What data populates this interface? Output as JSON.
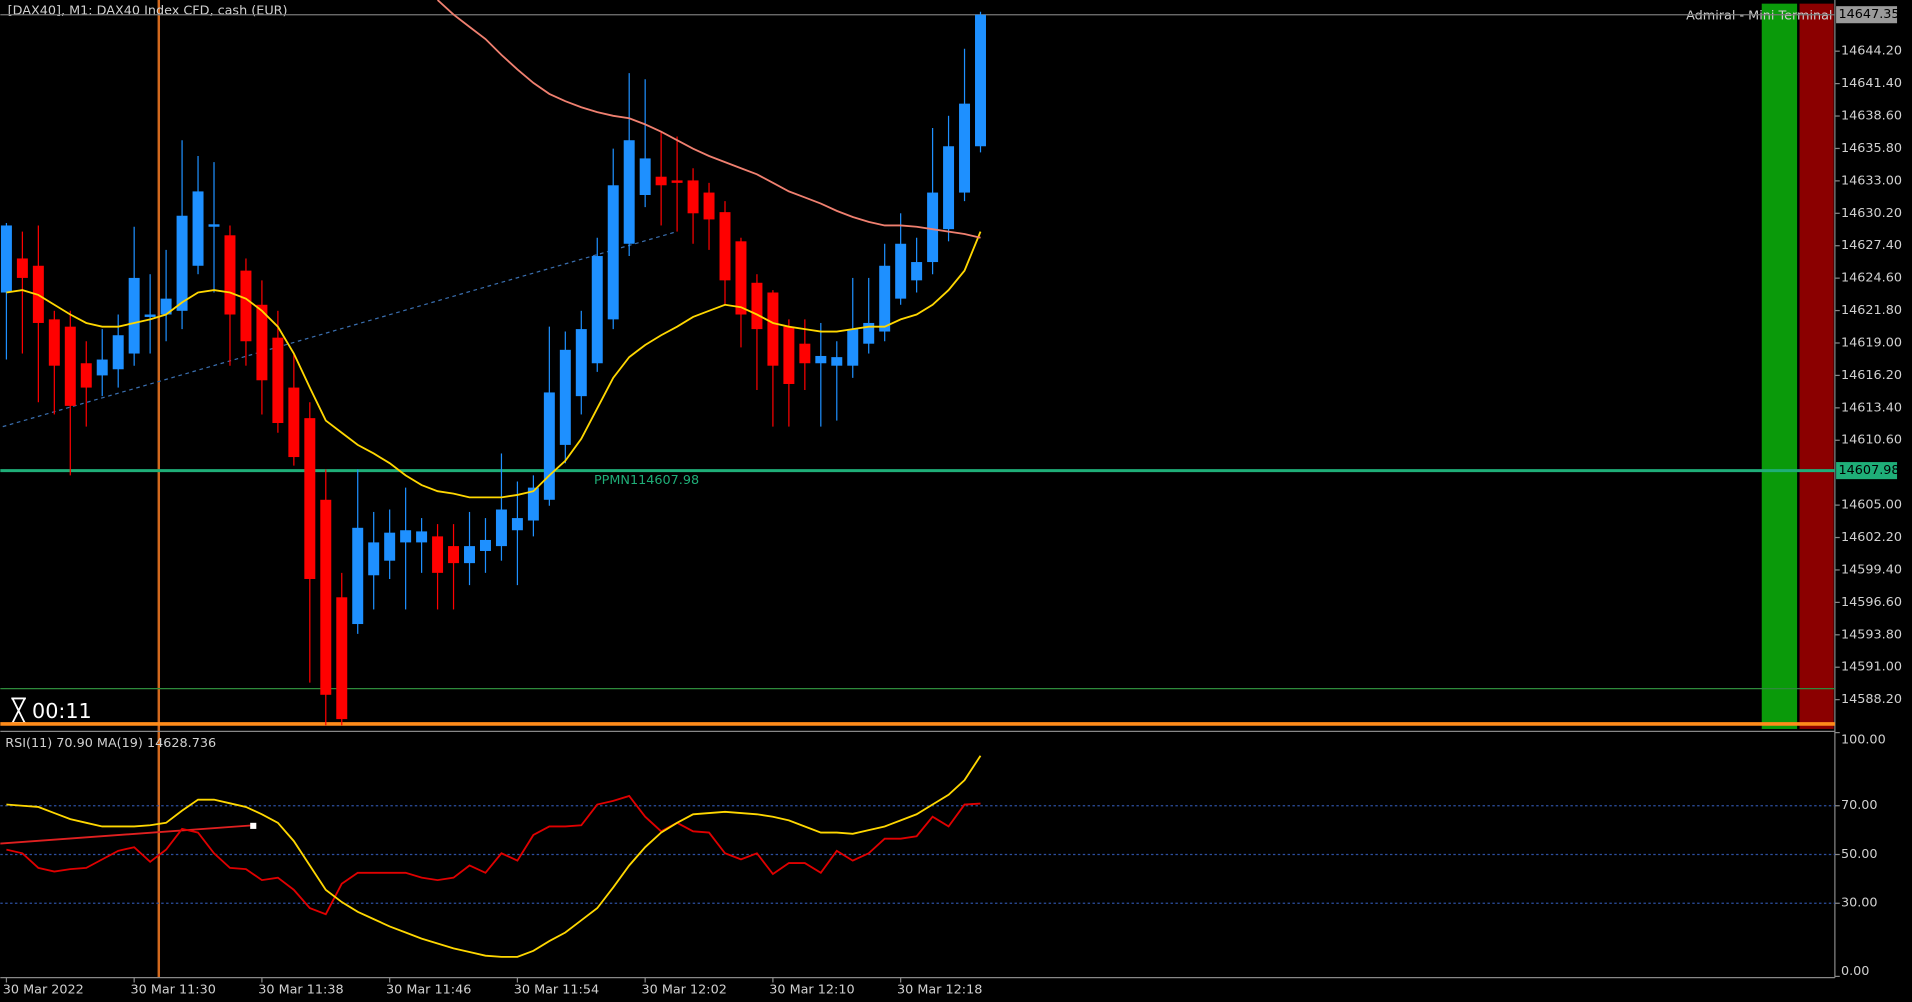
{
  "chart_data": [
    {
      "type": "candlestick",
      "title": "[DAX40], M1:  DAX40 Index CFD, cash (EUR)",
      "annotations": [
        "Admiral - Mini Terminal",
        "00:11"
      ],
      "up_color": "#1e90ff",
      "down_color": "#ff0000",
      "open": [
        14623.36,
        14626.3,
        14625.67,
        14621.04,
        14620.41,
        14617.25,
        14616.2,
        14616.73,
        14618.09,
        14621.25,
        14621.46,
        14621.78,
        14625.67,
        14629.04,
        14628.3,
        14625.25,
        14622.3,
        14619.46,
        14615.15,
        14612.51,
        14605.46,
        14597.04,
        14594.73,
        14598.94,
        14600.2,
        14601.78,
        14601.78,
        14602.3,
        14601.46,
        14599.99,
        14601.04,
        14601.46,
        14602.83,
        14603.67,
        14605.46,
        14610.2,
        14614.41,
        14617.25,
        14621.04,
        14627.57,
        14631.78,
        14633.36,
        14633.04,
        14633.04,
        14631.99,
        14630.3,
        14627.78,
        14624.2,
        14623.36,
        14620.41,
        14618.94,
        14617.25,
        14617.04,
        14617.04,
        14618.94,
        14619.99,
        14622.83,
        14624.41,
        14625.99,
        14628.83,
        14631.99,
        14635.99
      ],
      "high": [
        14629.36,
        14628.62,
        14629.15,
        14621.78,
        14621.78,
        14619.15,
        14620.2,
        14621.46,
        14629.04,
        14624.94,
        14627.04,
        14636.51,
        14635.15,
        14634.62,
        14629.15,
        14626.3,
        14624.41,
        14621.78,
        14618.09,
        14613.88,
        14608.09,
        14599.15,
        14608.09,
        14604.41,
        14604.62,
        14606.51,
        14603.88,
        14603.36,
        14603.36,
        14604.41,
        14603.88,
        14609.46,
        14607.04,
        14607.57,
        14620.41,
        14619.99,
        14621.78,
        14628.09,
        14635.78,
        14642.3,
        14641.78,
        14637.25,
        14636.83,
        14634.09,
        14632.83,
        14631.25,
        14628.09,
        14624.94,
        14623.57,
        14621.04,
        14621.04,
        14620.73,
        14619.15,
        14624.62,
        14624.62,
        14627.57,
        14630.2,
        14628.09,
        14637.57,
        14638.62,
        14644.41,
        14647.6
      ],
      "low": [
        14617.57,
        14618.09,
        14613.88,
        14612.83,
        14607.57,
        14611.78,
        14614.41,
        14615.15,
        14617.04,
        14618.09,
        14619.15,
        14620.2,
        14624.94,
        14623.36,
        14617.04,
        14617.04,
        14612.83,
        14611.25,
        14608.41,
        14589.67,
        14585.99,
        14585.99,
        14593.88,
        14595.99,
        14598.62,
        14595.99,
        14599.15,
        14595.99,
        14595.99,
        14598.09,
        14599.15,
        14600.2,
        14598.09,
        14602.3,
        14604.94,
        14608.62,
        14612.83,
        14616.51,
        14620.2,
        14626.51,
        14630.73,
        14629.15,
        14628.62,
        14627.57,
        14627.04,
        14622.3,
        14618.62,
        14614.94,
        14611.78,
        14611.78,
        14614.94,
        14611.78,
        14612.3,
        14615.99,
        14618.09,
        14619.15,
        14622.3,
        14623.36,
        14624.94,
        14627.78,
        14631.25,
        14635.46
      ],
      "close": [
        14629.15,
        14624.62,
        14620.73,
        14617.04,
        14613.57,
        14615.15,
        14617.57,
        14619.67,
        14624.62,
        14621.46,
        14622.83,
        14629.99,
        14632.09,
        14629.25,
        14621.46,
        14619.15,
        14615.78,
        14612.09,
        14609.15,
        14598.62,
        14588.62,
        14586.52,
        14603.04,
        14601.78,
        14602.62,
        14602.83,
        14602.73,
        14599.15,
        14599.99,
        14601.46,
        14601.99,
        14604.62,
        14603.88,
        14606.51,
        14614.73,
        14618.41,
        14620.2,
        14626.51,
        14632.62,
        14636.51,
        14634.94,
        14632.62,
        14632.83,
        14630.2,
        14629.67,
        14624.41,
        14621.46,
        14620.2,
        14617.04,
        14615.46,
        14617.25,
        14617.88,
        14617.78,
        14620.2,
        14620.73,
        14625.67,
        14627.57,
        14625.99,
        14631.99,
        14635.99,
        14639.67,
        14647.35
      ],
      "series": [
        {
          "color": "#ffd700",
          "values": [
            14623.36,
            14623.57,
            14623.15,
            14622.3,
            14621.46,
            14620.73,
            14620.41,
            14620.41,
            14620.73,
            14621.04,
            14621.46,
            14622.51,
            14623.36,
            14623.57,
            14623.36,
            14622.83,
            14621.78,
            14620.41,
            14618.09,
            14615.15,
            14612.3,
            14611.25,
            14610.2,
            14609.46,
            14608.62,
            14607.57,
            14606.73,
            14606.2,
            14605.99,
            14605.67,
            14605.67,
            14605.67,
            14605.88,
            14606.2,
            14607.57,
            14608.83,
            14610.73,
            14613.36,
            14615.99,
            14617.78,
            14618.83,
            14619.67,
            14620.41,
            14621.25,
            14621.78,
            14622.3,
            14622.09,
            14621.46,
            14620.73,
            14620.41,
            14620.2,
            14619.99,
            14619.99,
            14620.2,
            14620.41,
            14620.41,
            14621.04,
            14621.46,
            14622.3,
            14623.57,
            14625.25,
            14628.62
          ]
        },
        {
          "color": "#f08070",
          "values": [
            null,
            null,
            null,
            null,
            null,
            null,
            null,
            null,
            null,
            null,
            null,
            null,
            null,
            null,
            null,
            null,
            null,
            null,
            null,
            null,
            null,
            null,
            null,
            null,
            null,
            null,
            null,
            14648.62,
            14647.36,
            14646.3,
            14645.25,
            14643.88,
            14642.62,
            14641.46,
            14640.51,
            14639.88,
            14639.36,
            14638.94,
            14638.62,
            14638.41,
            14637.88,
            14637.25,
            14636.51,
            14635.78,
            14635.15,
            14634.62,
            14634.09,
            14633.57,
            14632.83,
            14632.09,
            14631.57,
            14631.04,
            14630.41,
            14629.88,
            14629.46,
            14629.15,
            14629.15,
            14629.04,
            14628.83,
            14628.62,
            14628.41,
            14628.09
          ]
        }
      ],
      "last_price": 14647.35,
      "hlines": [
        {
          "value": 14607.98,
          "color": "#1fae78",
          "label": "PPMN114607.98"
        },
        {
          "value": 14586.1,
          "color": "#ff8c1a"
        },
        {
          "value": 14589.15,
          "color": "#2e8b3c"
        }
      ],
      "ylim": [
        14585.67,
        14648.62
      ],
      "yticks": [
        {
          "value": 14644.2,
          "label": "14644.20"
        },
        {
          "value": 14641.4,
          "label": "14641.40"
        },
        {
          "value": 14638.6,
          "label": "14638.60"
        },
        {
          "value": 14635.8,
          "label": "14635.80"
        },
        {
          "value": 14633,
          "label": "14633.00"
        },
        {
          "value": 14630.2,
          "label": "14630.20"
        },
        {
          "value": 14627.4,
          "label": "14627.40"
        },
        {
          "value": 14624.6,
          "label": "14624.60"
        },
        {
          "value": 14621.8,
          "label": "14621.80"
        },
        {
          "value": 14619,
          "label": "14619.00"
        },
        {
          "value": 14616.2,
          "label": "14616.20"
        },
        {
          "value": 14613.4,
          "label": "14613.40"
        },
        {
          "value": 14610.6,
          "label": "14610.60"
        },
        {
          "value": 14605,
          "label": "14605.00"
        },
        {
          "value": 14602.2,
          "label": "14602.20"
        },
        {
          "value": 14599.4,
          "label": "14599.40"
        },
        {
          "value": 14596.6,
          "label": "14596.60"
        },
        {
          "value": 14593.8,
          "label": "14593.80"
        },
        {
          "value": 14591,
          "label": "14591.00"
        },
        {
          "value": 14588.2,
          "label": "14588.20"
        }
      ]
    },
    {
      "type": "line",
      "title": "RSI(11) 70.90 MA(19) 14628.736",
      "categories": [
        "30 Mar 2022",
        null,
        null,
        null,
        null,
        null,
        null,
        null,
        "30 Mar 11:30",
        null,
        null,
        null,
        null,
        null,
        null,
        null,
        "30 Mar 11:38",
        null,
        null,
        null,
        null,
        null,
        null,
        null,
        "30 Mar 11:46",
        null,
        null,
        null,
        null,
        null,
        null,
        null,
        "30 Mar 11:54",
        null,
        null,
        null,
        null,
        null,
        null,
        null,
        "30 Mar 12:02",
        null,
        null,
        null,
        null,
        null,
        null,
        null,
        "30 Mar 12:10",
        null,
        null,
        null,
        null,
        null,
        null,
        null,
        "30 Mar 12:18",
        null,
        null,
        null,
        null,
        null
      ],
      "series": [
        {
          "color": "#e00000",
          "values": [
            52,
            50.5,
            44.5,
            43,
            44,
            44.5,
            48,
            51.5,
            53,
            47,
            52,
            60.5,
            59,
            50.5,
            44.5,
            44,
            39.5,
            40.5,
            35.5,
            28,
            25.5,
            38,
            42.5,
            42.5,
            42.5,
            42.5,
            40.5,
            39.5,
            40.5,
            45.5,
            42.5,
            50.5,
            47.5,
            58,
            61.5,
            61.5,
            62,
            70.5,
            72,
            74,
            65.5,
            59.5,
            63,
            59.5,
            59,
            50.5,
            48,
            50.5,
            42,
            46.5,
            46.5,
            42.5,
            51.5,
            47.5,
            50.5,
            56.5,
            56.5,
            57.5,
            65.5,
            61.5,
            70.5,
            70.9
          ]
        },
        {
          "color": "#ffd700",
          "values": [
            70.5,
            70,
            69.5,
            67,
            64.5,
            63,
            61.5,
            61.5,
            61.5,
            62,
            63,
            68,
            72.5,
            72.5,
            71,
            69.5,
            66.5,
            63,
            55.5,
            45.5,
            35.5,
            30.5,
            26.5,
            23.5,
            20.5,
            18,
            15.5,
            13.5,
            11.5,
            10,
            8.5,
            8,
            8,
            10.5,
            14.5,
            18,
            23,
            28,
            36.5,
            45.5,
            53,
            59,
            63,
            66.5,
            67,
            67.5,
            67,
            66.5,
            65.5,
            64,
            61.5,
            59,
            59,
            58.5,
            60,
            61.5,
            64,
            66.5,
            70.5,
            74.5,
            80.5,
            90.5
          ]
        }
      ],
      "levels": [
        70,
        50,
        30
      ],
      "ylim": [
        0,
        100
      ],
      "yticks": [
        {
          "value": 100,
          "label": "100.00"
        },
        {
          "value": 70,
          "label": "70.00"
        },
        {
          "value": 50,
          "label": "50.00"
        },
        {
          "value": 30,
          "label": "30.00"
        },
        {
          "value": 0,
          "label": "0.00"
        }
      ]
    }
  ]
}
